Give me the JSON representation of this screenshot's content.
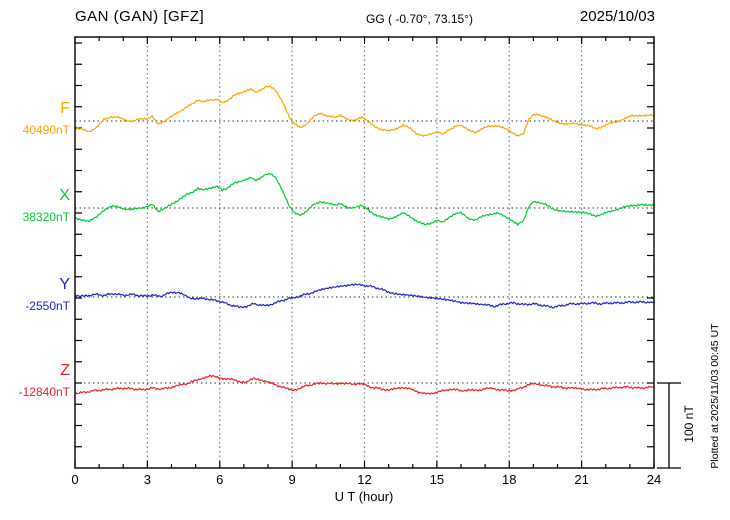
{
  "header": {
    "station_title": "GAN (GAN)  [GFZ]",
    "coords": "GG ( -0.70°,  73.15°)",
    "date": "2025/10/03"
  },
  "axis": {
    "xlabel": "U T (hour)",
    "x_ticks": [
      "0",
      "3",
      "6",
      "9",
      "12",
      "15",
      "18",
      "21",
      "24"
    ]
  },
  "scale_bar": {
    "label": "100 nT"
  },
  "footer": {
    "plotted_note": "Plotted at 2025/11/03 00:45 UT"
  },
  "traces": [
    {
      "id": "F",
      "label": "F",
      "value_label": "40490nT",
      "color": "#FFA500"
    },
    {
      "id": "X",
      "label": "X",
      "value_label": "38320nT",
      "color": "#00CC33"
    },
    {
      "id": "Y",
      "label": "Y",
      "value_label": "-2550nT",
      "color": "#2222CC"
    },
    {
      "id": "Z",
      "label": "Z",
      "value_label": "-12840nT",
      "color": "#EE2222"
    }
  ],
  "chart_data": {
    "type": "line",
    "title": "GAN (GAN) [GFZ]",
    "subtitle": "GG ( -0.70°, 73.15°)",
    "date": "2025/10/03",
    "xlabel": "U T (hour)",
    "x_range": [
      0,
      24
    ],
    "x_tick_step": 3,
    "grid": "vertical-dotted-every-3h",
    "scale_bar_nT": 100,
    "y_tick_spacing_nT": 25,
    "series": [
      {
        "name": "F",
        "baseline_nT": 40490,
        "color": "#FFA500",
        "points": [
          [
            0,
            -9
          ],
          [
            0.3,
            -10
          ],
          [
            0.6,
            -12
          ],
          [
            0.9,
            -8
          ],
          [
            1.2,
            2
          ],
          [
            1.5,
            5
          ],
          [
            1.8,
            4
          ],
          [
            2.1,
            1
          ],
          [
            2.4,
            0
          ],
          [
            2.7,
            2
          ],
          [
            3.0,
            3
          ],
          [
            3.2,
            6
          ],
          [
            3.45,
            -3
          ],
          [
            3.7,
            0
          ],
          [
            4.0,
            5
          ],
          [
            4.3,
            11
          ],
          [
            4.6,
            16
          ],
          [
            4.9,
            20
          ],
          [
            5.1,
            24
          ],
          [
            5.3,
            22
          ],
          [
            5.6,
            25
          ],
          [
            5.9,
            26
          ],
          [
            6.1,
            22
          ],
          [
            6.3,
            24
          ],
          [
            6.6,
            30
          ],
          [
            6.9,
            33
          ],
          [
            7.1,
            35
          ],
          [
            7.3,
            37
          ],
          [
            7.5,
            33
          ],
          [
            7.7,
            36
          ],
          [
            7.9,
            40
          ],
          [
            8.1,
            41
          ],
          [
            8.3,
            37
          ],
          [
            8.6,
            22
          ],
          [
            8.9,
            4
          ],
          [
            9.1,
            -3
          ],
          [
            9.35,
            -7
          ],
          [
            9.6,
            -3
          ],
          [
            9.9,
            5
          ],
          [
            10.2,
            9
          ],
          [
            10.5,
            6
          ],
          [
            10.8,
            4
          ],
          [
            11.0,
            6
          ],
          [
            11.3,
            2
          ],
          [
            11.6,
            1
          ],
          [
            11.9,
            4
          ],
          [
            12.1,
            0
          ],
          [
            12.4,
            -6
          ],
          [
            12.7,
            -10
          ],
          [
            13.0,
            -12
          ],
          [
            13.3,
            -9
          ],
          [
            13.6,
            -5
          ],
          [
            13.9,
            -9
          ],
          [
            14.2,
            -15
          ],
          [
            14.5,
            -18
          ],
          [
            14.8,
            -15
          ],
          [
            15.0,
            -13
          ],
          [
            15.25,
            -15
          ],
          [
            15.5,
            -10
          ],
          [
            15.8,
            -6
          ],
          [
            16.0,
            -5
          ],
          [
            16.3,
            -11
          ],
          [
            16.6,
            -13
          ],
          [
            16.9,
            -9
          ],
          [
            17.2,
            -6
          ],
          [
            17.5,
            -5
          ],
          [
            17.8,
            -9
          ],
          [
            18.1,
            -13
          ],
          [
            18.35,
            -17
          ],
          [
            18.6,
            -14
          ],
          [
            18.8,
            2
          ],
          [
            19.0,
            8
          ],
          [
            19.2,
            8
          ],
          [
            19.5,
            5
          ],
          [
            19.8,
            0
          ],
          [
            20.1,
            -2
          ],
          [
            20.4,
            -4
          ],
          [
            20.7,
            -3
          ],
          [
            21.0,
            -4
          ],
          [
            21.3,
            -6
          ],
          [
            21.6,
            -9
          ],
          [
            21.9,
            -6
          ],
          [
            22.2,
            -3
          ],
          [
            22.5,
            0
          ],
          [
            22.8,
            3
          ],
          [
            23.1,
            6
          ],
          [
            23.4,
            7
          ],
          [
            23.7,
            6
          ],
          [
            24,
            7
          ]
        ]
      },
      {
        "name": "X",
        "baseline_nT": 38320,
        "color": "#00CC33",
        "points": [
          [
            0,
            -13
          ],
          [
            0.3,
            -14
          ],
          [
            0.6,
            -15
          ],
          [
            0.9,
            -11
          ],
          [
            1.2,
            -2
          ],
          [
            1.5,
            2
          ],
          [
            1.8,
            1
          ],
          [
            2.1,
            -1
          ],
          [
            2.4,
            -2
          ],
          [
            2.7,
            0
          ],
          [
            3.0,
            2
          ],
          [
            3.2,
            5
          ],
          [
            3.45,
            -4
          ],
          [
            3.7,
            -1
          ],
          [
            4.0,
            4
          ],
          [
            4.3,
            10
          ],
          [
            4.6,
            15
          ],
          [
            4.9,
            19
          ],
          [
            5.1,
            23
          ],
          [
            5.3,
            21
          ],
          [
            5.6,
            24
          ],
          [
            5.9,
            25
          ],
          [
            6.1,
            21
          ],
          [
            6.3,
            23
          ],
          [
            6.6,
            29
          ],
          [
            6.9,
            32
          ],
          [
            7.1,
            34
          ],
          [
            7.3,
            36
          ],
          [
            7.5,
            32
          ],
          [
            7.7,
            35
          ],
          [
            7.9,
            39
          ],
          [
            8.1,
            40
          ],
          [
            8.3,
            36
          ],
          [
            8.6,
            20
          ],
          [
            8.9,
            2
          ],
          [
            9.1,
            -5
          ],
          [
            9.35,
            -8
          ],
          [
            9.6,
            -4
          ],
          [
            9.9,
            4
          ],
          [
            10.2,
            8
          ],
          [
            10.5,
            5
          ],
          [
            10.8,
            3
          ],
          [
            11.0,
            5
          ],
          [
            11.3,
            1
          ],
          [
            11.6,
            0
          ],
          [
            11.9,
            3
          ],
          [
            12.1,
            -1
          ],
          [
            12.4,
            -7
          ],
          [
            12.7,
            -11
          ],
          [
            13.0,
            -13
          ],
          [
            13.3,
            -10
          ],
          [
            13.6,
            -6
          ],
          [
            13.9,
            -10
          ],
          [
            14.2,
            -16
          ],
          [
            14.5,
            -20
          ],
          [
            14.8,
            -17
          ],
          [
            15.0,
            -14
          ],
          [
            15.25,
            -16
          ],
          [
            15.5,
            -11
          ],
          [
            15.8,
            -7
          ],
          [
            16.0,
            -6
          ],
          [
            16.3,
            -12
          ],
          [
            16.6,
            -14
          ],
          [
            16.9,
            -10
          ],
          [
            17.2,
            -7
          ],
          [
            17.5,
            -6
          ],
          [
            17.8,
            -10
          ],
          [
            18.1,
            -14
          ],
          [
            18.35,
            -19
          ],
          [
            18.6,
            -15
          ],
          [
            18.8,
            1
          ],
          [
            19.0,
            8
          ],
          [
            19.2,
            7
          ],
          [
            19.5,
            4
          ],
          [
            19.8,
            -1
          ],
          [
            20.1,
            -3
          ],
          [
            20.4,
            -5
          ],
          [
            20.7,
            -4
          ],
          [
            21.0,
            -5
          ],
          [
            21.3,
            -7
          ],
          [
            21.6,
            -9
          ],
          [
            21.9,
            -7
          ],
          [
            22.2,
            -4
          ],
          [
            22.5,
            -1
          ],
          [
            22.8,
            1
          ],
          [
            23.1,
            3
          ],
          [
            23.4,
            4
          ],
          [
            23.7,
            3
          ],
          [
            24,
            4
          ]
        ]
      },
      {
        "name": "Y",
        "baseline_nT": -2550,
        "color": "#2222CC",
        "points": [
          [
            0,
            2
          ],
          [
            0.4,
            1
          ],
          [
            0.8,
            3
          ],
          [
            1.2,
            2
          ],
          [
            1.6,
            4
          ],
          [
            2.0,
            2
          ],
          [
            2.4,
            3
          ],
          [
            2.8,
            1
          ],
          [
            3.2,
            2
          ],
          [
            3.6,
            1
          ],
          [
            4.0,
            6
          ],
          [
            4.3,
            5
          ],
          [
            4.6,
            1
          ],
          [
            5.0,
            -3
          ],
          [
            5.3,
            -1
          ],
          [
            5.6,
            -3
          ],
          [
            6.0,
            -5
          ],
          [
            6.4,
            -9
          ],
          [
            6.8,
            -12
          ],
          [
            7.1,
            -11
          ],
          [
            7.4,
            -8
          ],
          [
            7.6,
            -10
          ],
          [
            7.9,
            -10
          ],
          [
            8.2,
            -8
          ],
          [
            8.6,
            -4
          ],
          [
            9.0,
            -1
          ],
          [
            9.3,
            1
          ],
          [
            9.7,
            4
          ],
          [
            10.0,
            7
          ],
          [
            10.5,
            10
          ],
          [
            11.0,
            13
          ],
          [
            11.5,
            15
          ],
          [
            11.8,
            14
          ],
          [
            12.2,
            13
          ],
          [
            12.6,
            10
          ],
          [
            13.0,
            6
          ],
          [
            13.5,
            3
          ],
          [
            14.0,
            1
          ],
          [
            14.5,
            0
          ],
          [
            15.0,
            -1
          ],
          [
            15.5,
            -4
          ],
          [
            16.0,
            -7
          ],
          [
            16.5,
            -7
          ],
          [
            17.0,
            -9
          ],
          [
            17.4,
            -11
          ],
          [
            17.8,
            -8
          ],
          [
            18.2,
            -7
          ],
          [
            18.6,
            -9
          ],
          [
            19.0,
            -8
          ],
          [
            19.4,
            -10
          ],
          [
            19.8,
            -12
          ],
          [
            20.2,
            -10
          ],
          [
            20.6,
            -8
          ],
          [
            21.0,
            -8
          ],
          [
            21.4,
            -7
          ],
          [
            21.8,
            -8
          ],
          [
            22.2,
            -7
          ],
          [
            22.6,
            -7
          ],
          [
            23.0,
            -6
          ],
          [
            23.4,
            -6
          ],
          [
            23.8,
            -6
          ],
          [
            24,
            -6
          ]
        ]
      },
      {
        "name": "Z",
        "baseline_nT": -12840,
        "color": "#EE2222",
        "points": [
          [
            0,
            -12
          ],
          [
            0.4,
            -11
          ],
          [
            0.8,
            -9
          ],
          [
            1.2,
            -8
          ],
          [
            1.6,
            -7
          ],
          [
            2.0,
            -6
          ],
          [
            2.4,
            -7
          ],
          [
            2.8,
            -8
          ],
          [
            3.2,
            -6
          ],
          [
            3.6,
            -7
          ],
          [
            4.0,
            -5
          ],
          [
            4.3,
            -3
          ],
          [
            4.6,
            -1
          ],
          [
            5.0,
            3
          ],
          [
            5.3,
            6
          ],
          [
            5.6,
            8
          ],
          [
            5.9,
            7
          ],
          [
            6.2,
            5
          ],
          [
            6.5,
            4
          ],
          [
            6.8,
            2
          ],
          [
            7.1,
            1
          ],
          [
            7.4,
            5
          ],
          [
            7.7,
            4
          ],
          [
            8.0,
            1
          ],
          [
            8.3,
            -2
          ],
          [
            8.7,
            -6
          ],
          [
            9.0,
            -8
          ],
          [
            9.3,
            -7
          ],
          [
            9.6,
            -3
          ],
          [
            10.0,
            -1
          ],
          [
            10.3,
            0
          ],
          [
            10.7,
            -1
          ],
          [
            11.0,
            0
          ],
          [
            11.3,
            -1
          ],
          [
            11.7,
            -1
          ],
          [
            12.0,
            -2
          ],
          [
            12.3,
            -5
          ],
          [
            12.7,
            -7
          ],
          [
            13.0,
            -8
          ],
          [
            13.3,
            -7
          ],
          [
            13.6,
            -5
          ],
          [
            14.0,
            -8
          ],
          [
            14.3,
            -11
          ],
          [
            14.6,
            -13
          ],
          [
            15.0,
            -11
          ],
          [
            15.3,
            -9
          ],
          [
            15.6,
            -7
          ],
          [
            16.0,
            -9
          ],
          [
            16.3,
            -8
          ],
          [
            16.6,
            -9
          ],
          [
            17.0,
            -7
          ],
          [
            17.3,
            -6
          ],
          [
            17.6,
            -8
          ],
          [
            18.0,
            -9
          ],
          [
            18.3,
            -8
          ],
          [
            18.7,
            -3
          ],
          [
            19.0,
            -1
          ],
          [
            19.3,
            -2
          ],
          [
            19.7,
            -4
          ],
          [
            20.1,
            -5
          ],
          [
            20.5,
            -6
          ],
          [
            21.0,
            -7
          ],
          [
            21.4,
            -8
          ],
          [
            21.8,
            -7
          ],
          [
            22.2,
            -6
          ],
          [
            22.6,
            -5
          ],
          [
            23.0,
            -5
          ],
          [
            23.4,
            -6
          ],
          [
            23.8,
            -5
          ],
          [
            24,
            -5
          ]
        ]
      }
    ]
  }
}
